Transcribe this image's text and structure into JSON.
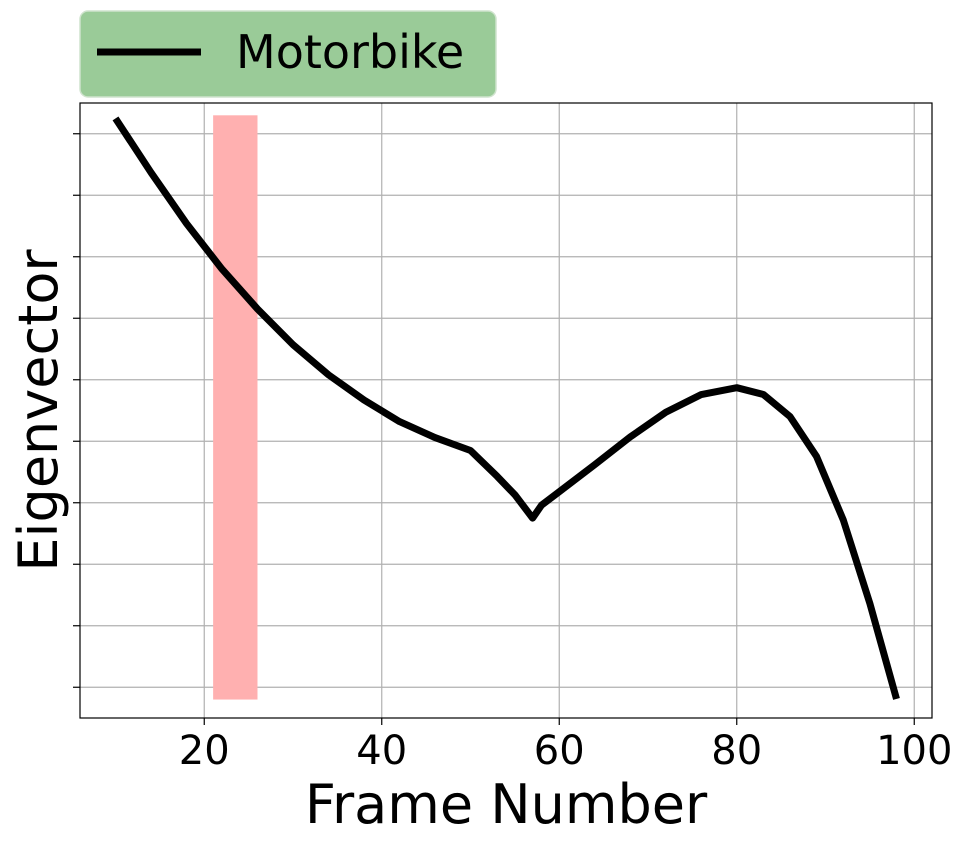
{
  "chart_data": {
    "type": "line",
    "xlabel": "Frame Number",
    "ylabel": "Eigenvector",
    "xlim": [
      6,
      102
    ],
    "ylim": [
      0,
      1
    ],
    "x_ticks": [
      20,
      40,
      60,
      80,
      100
    ],
    "y_tick_values": [
      0.05,
      0.15,
      0.25,
      0.35,
      0.45,
      0.55,
      0.65,
      0.75,
      0.85,
      0.95
    ],
    "y_tick_labels_shown": false,
    "grid": true,
    "legend_position": "top-left, above plot",
    "highlight_band": {
      "x_start": 21,
      "x_end": 26,
      "y_start": 0.03,
      "y_end": 0.98,
      "color": "#ffb0b0"
    },
    "series": [
      {
        "name": "Motorbike",
        "color": "#000000",
        "x": [
          10,
          14,
          18,
          22,
          26,
          30,
          34,
          38,
          42,
          46,
          50,
          53,
          55,
          57,
          58,
          60,
          64,
          68,
          72,
          76,
          80,
          83,
          86,
          89,
          92,
          95,
          98
        ],
        "y": [
          0.975,
          0.887,
          0.804,
          0.73,
          0.665,
          0.607,
          0.558,
          0.517,
          0.482,
          0.456,
          0.435,
          0.393,
          0.363,
          0.325,
          0.346,
          0.368,
          0.412,
          0.457,
          0.497,
          0.526,
          0.537,
          0.526,
          0.49,
          0.425,
          0.322,
          0.186,
          0.031
        ]
      }
    ]
  }
}
